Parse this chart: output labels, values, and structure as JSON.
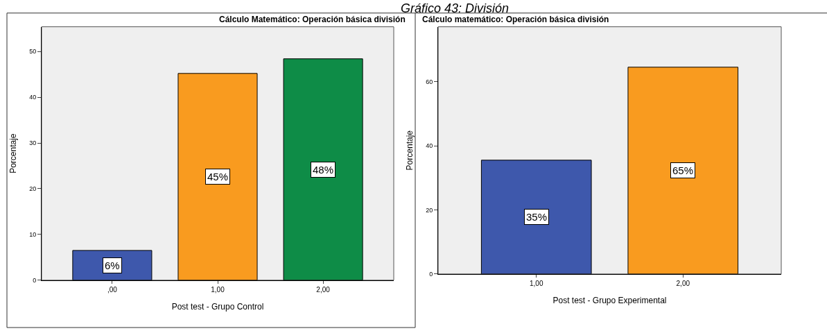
{
  "chart_data": [
    {
      "type": "bar",
      "title": "Cálculo Matemático: Operación básica división",
      "xlabel": "Post test - Grupo Control",
      "ylabel": "Porcentaje",
      "annotations": [
        "Gráfico 43: División"
      ],
      "categories": [
        ",00",
        "1,00",
        "2,00"
      ],
      "values": [
        6.5,
        45.2,
        48.4
      ],
      "colors": [
        "#3e58ac",
        "#f99b1f",
        "#0e8c47"
      ],
      "value_labels": [
        "6%",
        "45%",
        "48%"
      ],
      "ylim": [
        0,
        55.4
      ],
      "yticks": [
        0,
        10,
        20,
        30,
        40,
        50
      ],
      "grid": false
    },
    {
      "type": "bar",
      "title": "Cálculo matemático: Operación básica división",
      "xlabel": "Post test - Grupo Experimental",
      "ylabel": "Porcentaje",
      "categories": [
        "1,00",
        "2,00"
      ],
      "values": [
        35.5,
        64.5
      ],
      "colors": [
        "#3e58ac",
        "#f99b1f"
      ],
      "value_labels": [
        "35%",
        "65%"
      ],
      "ylim": [
        0,
        77.1
      ],
      "yticks": [
        0,
        20,
        40,
        60
      ],
      "grid": false
    }
  ]
}
